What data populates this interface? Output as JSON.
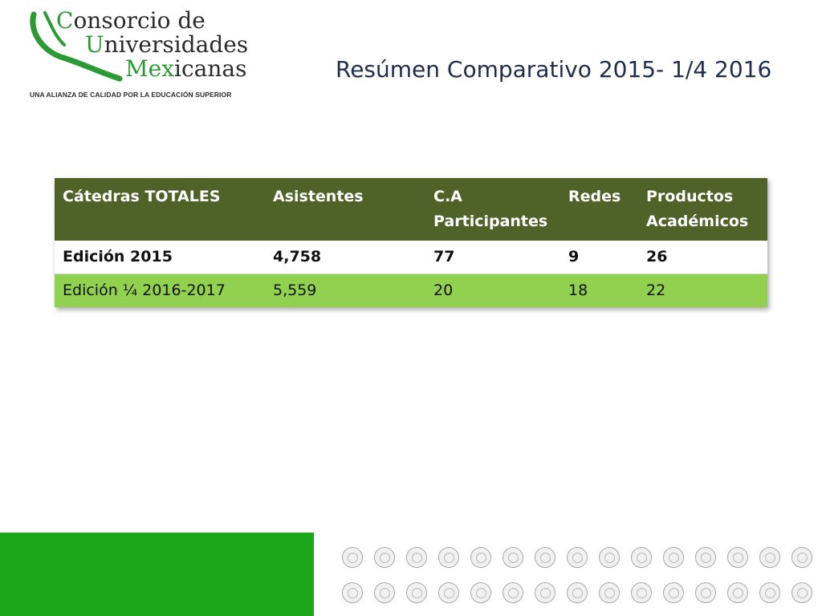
{
  "logo": {
    "line1_first": "C",
    "line1_rest": "onsorcio de",
    "line2_first": "U",
    "line2_rest": "niversidades",
    "line3_first": "Mex",
    "line3_rest": "icanas",
    "tagline": "UNA ALIANZA DE CALIDAD POR LA EDUCACIÓN SUPERIOR",
    "colors": {
      "accent": "#2b9a34",
      "text": "#2b2b2b"
    }
  },
  "title": "Resúmen Comparativo 2015- 1/4 2016",
  "table": {
    "headers": [
      "Cátedras  TOTALES",
      "Asistentes",
      "C.A Participantes",
      "Redes",
      "Productos Académicos"
    ],
    "rows": [
      [
        "Edición  2015",
        "4,758",
        "77",
        "9",
        "26"
      ],
      [
        "Edición ¼ 2016-2017",
        "5,559",
        "20",
        "18",
        "22"
      ]
    ],
    "colors": {
      "header": "#4f6228",
      "row_highlight": "#92d050"
    }
  },
  "footer": {
    "green_block_color": "#1aa81a",
    "member_seals": 30
  }
}
